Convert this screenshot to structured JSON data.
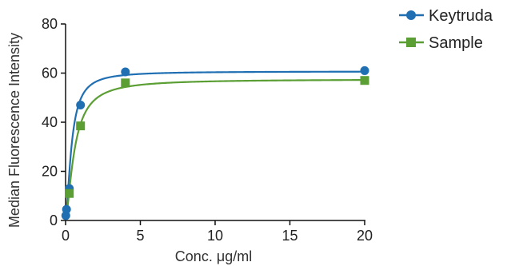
{
  "chart_data": {
    "type": "scatter",
    "title": "",
    "xlabel": "Conc. μg/ml",
    "ylabel": "Median Fluorescence Intensity",
    "xlim": [
      0,
      20
    ],
    "ylim": [
      0,
      80
    ],
    "x_ticks": [
      0,
      5,
      10,
      15,
      20
    ],
    "y_ticks": [
      0,
      20,
      40,
      60,
      80
    ],
    "grid": false,
    "legend_position": "top-right",
    "fit_curves": true,
    "series": [
      {
        "name": "Keytruda",
        "color": "#1f6fb2",
        "marker": "circle",
        "x": [
          0.016,
          0.063,
          0.25,
          1.0,
          4.0,
          20.0
        ],
        "y": [
          2,
          4.5,
          13,
          47,
          60.5,
          61
        ],
        "fit": {
          "bottom": 0,
          "top": 60.7,
          "ec50": 0.4,
          "hill": 1.6
        }
      },
      {
        "name": "Sample",
        "color": "#5a9e34",
        "marker": "square",
        "x": [
          0.25,
          1.0,
          4.0,
          20.0
        ],
        "y": [
          11,
          38.5,
          56,
          57
        ],
        "fit": {
          "bottom": 0,
          "top": 57.5,
          "ec50": 0.6,
          "hill": 1.5
        }
      }
    ]
  }
}
